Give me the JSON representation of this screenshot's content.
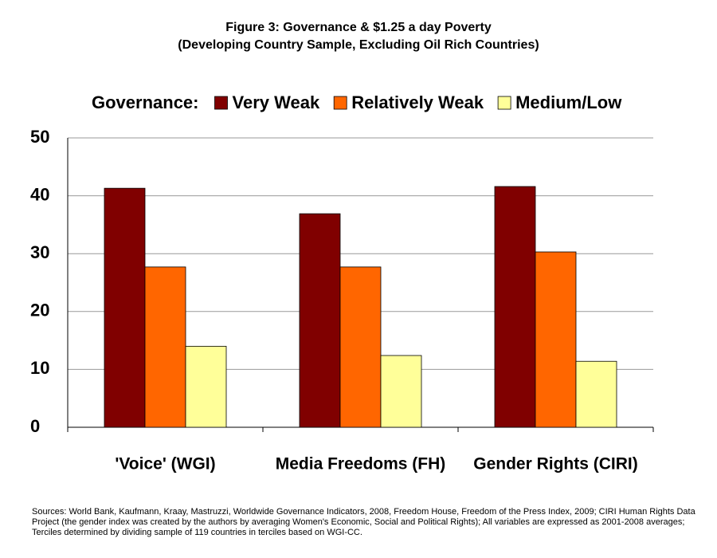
{
  "chart_data": {
    "type": "bar",
    "title": "Figure 3: Governance & $1.25 a day Poverty",
    "subtitle": "(Developing Country Sample, Excluding Oil Rich Countries)",
    "legend_title": "Governance:",
    "categories": [
      "'Voice' (WGI)",
      "Media Freedoms (FH)",
      "Gender Rights (CIRI)"
    ],
    "series": [
      {
        "name": "Very Weak",
        "color": "#800000",
        "values": [
          41.3,
          36.9,
          41.6
        ]
      },
      {
        "name": "Relatively Weak",
        "color": "#ff6600",
        "values": [
          27.7,
          27.7,
          30.3
        ]
      },
      {
        "name": "Medium/Low",
        "color": "#ffff99",
        "values": [
          14.0,
          12.4,
          11.4
        ]
      }
    ],
    "ylim": [
      0,
      50
    ],
    "yticks": [
      0,
      10,
      20,
      30,
      40,
      50
    ],
    "grid": true,
    "legend": "top",
    "note": "Sources: World Bank,  Kaufmann, Kraay, Mastruzzi, Worldwide Governance Indicators, 2008, Freedom House, Freedom of the Press Index, 2009; CIRI Human Rights Data Project (the gender index was created by the authors by averaging Women's Economic, Social and Political Rights); All variables are expressed as 2001-2008 averages; Terciles determined by dividing sample of 119 countries in terciles based on WGI-CC."
  }
}
